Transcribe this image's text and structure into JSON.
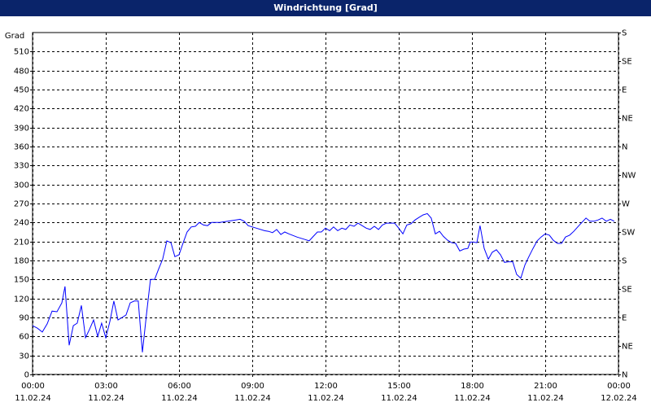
{
  "chart_data": {
    "type": "line",
    "title": "Windrichtung [Grad]",
    "y_label": "Grad",
    "color": "#0000ff",
    "grid": true,
    "xlim": [
      0,
      24
    ],
    "xticks": [
      {
        "value": 0,
        "label": "00:00",
        "date": "11.02.24"
      },
      {
        "value": 3,
        "label": "03:00",
        "date": "11.02.24"
      },
      {
        "value": 6,
        "label": "06:00",
        "date": "11.02.24"
      },
      {
        "value": 9,
        "label": "09:00",
        "date": "11.02.24"
      },
      {
        "value": 12,
        "label": "12:00",
        "date": "11.02.24"
      },
      {
        "value": 15,
        "label": "15:00",
        "date": "11.02.24"
      },
      {
        "value": 18,
        "label": "18:00",
        "date": "11.02.24"
      },
      {
        "value": 21,
        "label": "21:00",
        "date": "11.02.24"
      },
      {
        "value": 24,
        "label": "00:00",
        "date": "12.02.24"
      }
    ],
    "ylim": [
      0,
      540
    ],
    "yticks": [
      0,
      30,
      60,
      90,
      120,
      150,
      180,
      210,
      240,
      270,
      300,
      330,
      360,
      390,
      420,
      450,
      480,
      510
    ],
    "y2lim": [
      0,
      540
    ],
    "y2ticks": [
      {
        "value": 0,
        "label": "N"
      },
      {
        "value": 45,
        "label": "NE"
      },
      {
        "value": 90,
        "label": "E"
      },
      {
        "value": 135,
        "label": "SE"
      },
      {
        "value": 180,
        "label": "S"
      },
      {
        "value": 225,
        "label": "SW"
      },
      {
        "value": 270,
        "label": "W"
      },
      {
        "value": 315,
        "label": "NW"
      },
      {
        "value": 360,
        "label": "N"
      },
      {
        "value": 405,
        "label": "NE"
      },
      {
        "value": 450,
        "label": "E"
      },
      {
        "value": 495,
        "label": "SE"
      },
      {
        "value": 540,
        "label": "S"
      }
    ],
    "x": [
      0,
      0.2,
      0.4,
      0.6,
      0.8,
      1,
      1.2,
      1.33,
      1.5,
      1.67,
      1.83,
      2,
      2.17,
      2.33,
      2.5,
      2.67,
      2.83,
      3,
      3.17,
      3.33,
      3.5,
      3.67,
      3.83,
      4,
      4.17,
      4.33,
      4.5,
      4.67,
      4.83,
      5,
      5.17,
      5.33,
      5.5,
      5.67,
      5.83,
      6,
      6.17,
      6.33,
      6.5,
      6.67,
      6.83,
      7,
      7.17,
      7.33,
      7.67,
      8,
      8.33,
      8.5,
      8.67,
      8.83,
      9.17,
      9.5,
      9.67,
      9.83,
      10,
      10.17,
      10.33,
      10.5,
      10.83,
      11.17,
      11.33,
      11.5,
      11.67,
      11.83,
      12,
      12.17,
      12.33,
      12.5,
      12.67,
      12.83,
      13,
      13.17,
      13.33,
      13.5,
      13.67,
      13.83,
      14,
      14.17,
      14.33,
      14.5,
      14.67,
      14.83,
      15,
      15.17,
      15.33,
      15.5,
      15.67,
      15.83,
      16,
      16.17,
      16.33,
      16.5,
      16.67,
      16.83,
      17,
      17.17,
      17.33,
      17.5,
      17.67,
      17.83,
      17.93,
      18.07,
      18.2,
      18.33,
      18.5,
      18.67,
      18.83,
      19,
      19.17,
      19.33,
      19.5,
      19.67,
      19.83,
      20,
      20.17,
      20.33,
      20.5,
      20.67,
      20.83,
      21,
      21.17,
      21.33,
      21.5,
      21.67,
      21.83,
      22,
      22.17,
      22.33,
      22.5,
      22.67,
      22.83,
      23,
      23.17,
      23.33,
      23.5,
      23.67,
      23.83
    ],
    "values": [
      77,
      73,
      67,
      80,
      100,
      99,
      113,
      139,
      46,
      77,
      81,
      109,
      58,
      71,
      86,
      60,
      81,
      58,
      84,
      116,
      86,
      90,
      94,
      113,
      116,
      116,
      35,
      96,
      150,
      150,
      167,
      182,
      211,
      208,
      186,
      189,
      208,
      225,
      233,
      234,
      240,
      236,
      235,
      240,
      240,
      242,
      244,
      245,
      242,
      235,
      231,
      227,
      226,
      224,
      229,
      221,
      225,
      222,
      217,
      213,
      211,
      218,
      225,
      225,
      231,
      227,
      233,
      227,
      231,
      229,
      236,
      234,
      239,
      235,
      231,
      229,
      234,
      229,
      236,
      239,
      239,
      239,
      231,
      222,
      236,
      238,
      244,
      248,
      252,
      254,
      247,
      222,
      226,
      218,
      212,
      208,
      207,
      195,
      198,
      199,
      209,
      209,
      208,
      235,
      199,
      182,
      193,
      197,
      189,
      177,
      178,
      178,
      158,
      152,
      173,
      186,
      199,
      211,
      217,
      222,
      220,
      212,
      207,
      207,
      217,
      220,
      226,
      233,
      240,
      247,
      242,
      242,
      244,
      247,
      242,
      245,
      242
    ]
  }
}
